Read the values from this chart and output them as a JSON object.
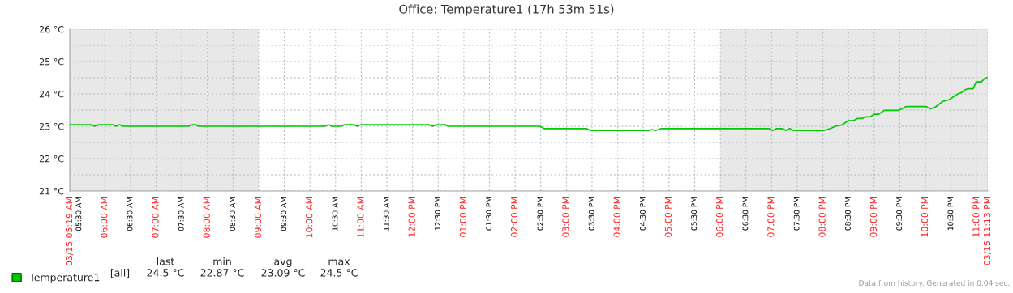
{
  "chart_data": {
    "type": "line",
    "title": "Office: Temperature1 (17h 53m 51s)",
    "x": [
      5.3167,
      5.74,
      5.8,
      5.88,
      6.16,
      6.22,
      6.29,
      6.36,
      7.63,
      7.69,
      7.77,
      7.83,
      10.29,
      10.36,
      10.43,
      10.61,
      10.67,
      10.86,
      10.92,
      11.0,
      12.32,
      12.39,
      12.47,
      12.64,
      12.69,
      14.49,
      14.56,
      15.39,
      15.47,
      16.61,
      16.67,
      16.74,
      16.85,
      18.97,
      19.02,
      19.1,
      19.21,
      19.28,
      19.35,
      19.43,
      20.02,
      20.15,
      20.24,
      20.37,
      20.49,
      20.59,
      20.67,
      20.76,
      20.82,
      20.92,
      21.0,
      21.08,
      21.2,
      21.47,
      21.63,
      22.01,
      22.1,
      22.2,
      22.34,
      22.46,
      22.62,
      22.71,
      22.77,
      22.84,
      22.93,
      22.99,
      23.09,
      23.17,
      23.21
    ],
    "series": [
      {
        "name": "Temperature1",
        "color": "#00c800",
        "values": [
          23.05,
          23.05,
          23.0,
          23.05,
          23.05,
          23.0,
          23.05,
          23.0,
          23.0,
          23.05,
          23.05,
          23.0,
          23.0,
          23.05,
          23.0,
          23.0,
          23.05,
          23.05,
          23.0,
          23.05,
          23.05,
          23.0,
          23.05,
          23.05,
          23.0,
          23.0,
          22.93,
          22.93,
          22.87,
          22.87,
          22.9,
          22.87,
          22.93,
          22.93,
          22.87,
          22.93,
          22.93,
          22.87,
          22.93,
          22.87,
          22.87,
          22.93,
          23.0,
          23.04,
          23.17,
          23.17,
          23.24,
          23.24,
          23.29,
          23.29,
          23.37,
          23.37,
          23.49,
          23.49,
          23.61,
          23.61,
          23.54,
          23.6,
          23.77,
          23.82,
          23.99,
          24.05,
          24.13,
          24.16,
          24.16,
          24.37,
          24.37,
          24.5,
          24.5
        ]
      }
    ],
    "xlim": [
      5.3167,
      23.2167
    ],
    "xticks": [
      {
        "value": 5.3167,
        "label": "03/15 05:19 AM"
      },
      {
        "value": 5.5,
        "label": "05:30 AM"
      },
      {
        "value": 6,
        "label": "06:00 AM"
      },
      {
        "value": 6.5,
        "label": "06:30 AM"
      },
      {
        "value": 7,
        "label": "07:00 AM"
      },
      {
        "value": 7.5,
        "label": "07:30 AM"
      },
      {
        "value": 8,
        "label": "08:00 AM"
      },
      {
        "value": 8.5,
        "label": "08:30 AM"
      },
      {
        "value": 9,
        "label": "09:00 AM"
      },
      {
        "value": 9.5,
        "label": "09:30 AM"
      },
      {
        "value": 10,
        "label": "10:00 AM"
      },
      {
        "value": 10.5,
        "label": "10:30 AM"
      },
      {
        "value": 11,
        "label": "11:00 AM"
      },
      {
        "value": 11.5,
        "label": "11:30 AM"
      },
      {
        "value": 12,
        "label": "12:00 PM"
      },
      {
        "value": 12.5,
        "label": "12:30 PM"
      },
      {
        "value": 13,
        "label": "01:00 PM"
      },
      {
        "value": 13.5,
        "label": "01:30 PM"
      },
      {
        "value": 14,
        "label": "02:00 PM"
      },
      {
        "value": 14.5,
        "label": "02:30 PM"
      },
      {
        "value": 15,
        "label": "03:00 PM"
      },
      {
        "value": 15.5,
        "label": "03:30 PM"
      },
      {
        "value": 16,
        "label": "04:00 PM"
      },
      {
        "value": 16.5,
        "label": "04:30 PM"
      },
      {
        "value": 17,
        "label": "05:00 PM"
      },
      {
        "value": 17.5,
        "label": "05:30 PM"
      },
      {
        "value": 18,
        "label": "06:00 PM"
      },
      {
        "value": 18.5,
        "label": "06:30 PM"
      },
      {
        "value": 19,
        "label": "07:00 PM"
      },
      {
        "value": 19.5,
        "label": "07:30 PM"
      },
      {
        "value": 20,
        "label": "08:00 PM"
      },
      {
        "value": 20.5,
        "label": "08:30 PM"
      },
      {
        "value": 21,
        "label": "09:00 PM"
      },
      {
        "value": 21.5,
        "label": "09:30 PM"
      },
      {
        "value": 22,
        "label": "10:00 PM"
      },
      {
        "value": 22.5,
        "label": "10:30 PM"
      },
      {
        "value": 23,
        "label": "11:00 PM"
      },
      {
        "value": 23.2167,
        "label": "03/15 11:13 PM"
      }
    ],
    "ylim": [
      21,
      26
    ],
    "yticks": [
      {
        "value": 21,
        "label": "21 °C"
      },
      {
        "value": 21.5,
        "label": null
      },
      {
        "value": 22,
        "label": "22 °C"
      },
      {
        "value": 22.5,
        "label": null
      },
      {
        "value": 23,
        "label": "23 °C"
      },
      {
        "value": 23.5,
        "label": null
      },
      {
        "value": 24,
        "label": "24 °C"
      },
      {
        "value": 24.5,
        "label": null
      },
      {
        "value": 25,
        "label": "25 °C"
      },
      {
        "value": 25.5,
        "label": null
      },
      {
        "value": 26,
        "label": "26 °C"
      }
    ],
    "bands": [
      {
        "axis": "x",
        "from": 5.3167,
        "to": 9,
        "color": "#e8e8e8"
      },
      {
        "axis": "x",
        "from": 18,
        "to": 23.2167,
        "color": "#e8e8e8"
      }
    ],
    "grid": true,
    "legend": "bottom",
    "line_style": "solid",
    "marker": "none",
    "annotations": [
      "[all]",
      "last",
      "min",
      "avg",
      "max",
      "24.5 °C",
      "22.87 °C",
      "23.09 °C",
      "24.5 °C",
      "Data from history. Generated in 0.04 sec."
    ]
  }
}
